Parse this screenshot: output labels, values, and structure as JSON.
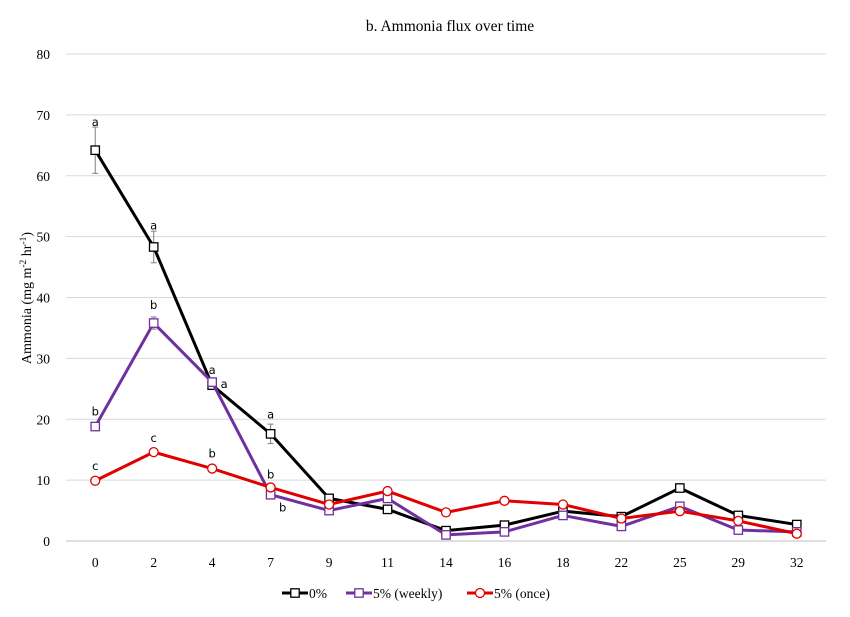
{
  "chart_data": {
    "type": "line",
    "title": "b. Ammonia flux over time",
    "ylabel": "Ammonia (mg m",
    "ylabel_sup1": "-2",
    "ylabel_mid": " hr",
    "ylabel_sup2": "-1",
    "ylabel_end": ")",
    "xlabel": "",
    "ylim": [
      0,
      80
    ],
    "yticks": [
      0,
      10,
      20,
      30,
      40,
      50,
      60,
      70,
      80
    ],
    "grid": true,
    "legend_position": "bottom",
    "categories": [
      "0",
      "2",
      "4",
      "7",
      "9",
      "11",
      "14",
      "16",
      "18",
      "22",
      "25",
      "29",
      "32"
    ],
    "series": [
      {
        "name": "0%",
        "color": "#000000",
        "marker": "square",
        "values": [
          64.2,
          48.3,
          25.6,
          17.6,
          7.0,
          5.2,
          1.7,
          2.6,
          4.9,
          4.0,
          8.7,
          4.2,
          2.7
        ],
        "errors": [
          3.8,
          2.6,
          0,
          1.6,
          0,
          0,
          0,
          0,
          0,
          0,
          0,
          0,
          0
        ]
      },
      {
        "name": "5% (weekly)",
        "color": "#7030a0",
        "marker": "square",
        "values": [
          18.8,
          35.8,
          26.1,
          7.6,
          5.0,
          7.0,
          1.0,
          1.5,
          4.2,
          2.4,
          5.7,
          1.8,
          1.5
        ],
        "errors": [
          0,
          1.0,
          0,
          0,
          0,
          0,
          0,
          0,
          0,
          0,
          0,
          0,
          0
        ]
      },
      {
        "name": "5% (once)",
        "color": "#e00000",
        "marker": "circle",
        "values": [
          9.9,
          14.6,
          11.9,
          8.8,
          6.0,
          8.2,
          4.7,
          6.6,
          6.0,
          3.7,
          4.9,
          3.3,
          1.2
        ],
        "errors": [
          0,
          0,
          0,
          0,
          0,
          0,
          0,
          0,
          0,
          0,
          0,
          0,
          0
        ]
      }
    ],
    "annotations": [
      {
        "category": "0",
        "value": 68.8,
        "text": "a"
      },
      {
        "category": "0",
        "value": 21.3,
        "text": "b"
      },
      {
        "category": "0",
        "value": 12.3,
        "text": "c"
      },
      {
        "category": "2",
        "value": 51.8,
        "text": "a"
      },
      {
        "category": "2",
        "value": 38.8,
        "text": "b"
      },
      {
        "category": "2",
        "value": 16.9,
        "text": "c"
      },
      {
        "category": "4",
        "value": 28.1,
        "text": "a",
        "side": "center"
      },
      {
        "category": "4",
        "value": 25.8,
        "text": "a",
        "side": "right"
      },
      {
        "category": "4",
        "value": 14.4,
        "text": "b"
      },
      {
        "category": "7",
        "value": 20.8,
        "text": "a"
      },
      {
        "category": "7",
        "value": 10.9,
        "text": "b"
      },
      {
        "category": "7",
        "value": 5.5,
        "text": "b",
        "side": "right"
      }
    ]
  }
}
